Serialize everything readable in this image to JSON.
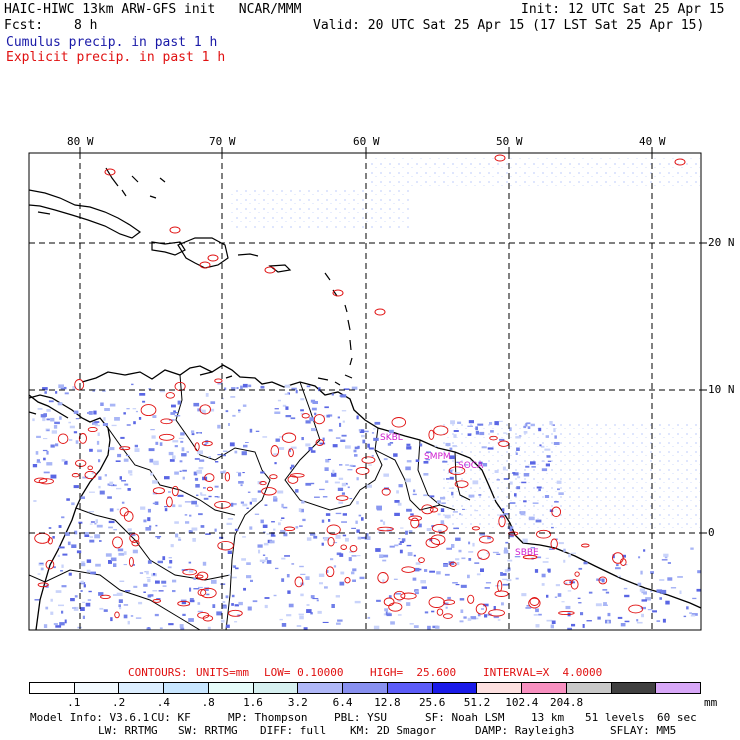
{
  "header": {
    "model": "HAIC-HIWC 13km ARW-GFS init   NCAR/MMM",
    "init": "Init: 12 UTC Sat 25 Apr 15",
    "fcst_label": "Fcst:",
    "fcst_value": "8 h",
    "valid": "Valid: 20 UTC Sat 25 Apr 15 (17 LST Sat 25 Apr 15)",
    "cumulus": "Cumulus precip. in past 1 h",
    "explicit": "Explicit precip. in past 1 h"
  },
  "map": {
    "lon_labels": [
      "80 W",
      "70 W",
      "60 W",
      "50 W",
      "40 W"
    ],
    "lat_labels": [
      "20 N",
      "10 N",
      "0"
    ],
    "stations": [
      "SKBL",
      "SMPM",
      "SOCA",
      "SBBE"
    ],
    "ocean_color": "#ffffff",
    "coast_color": "#000000",
    "contour_color": "#e01010",
    "precip_color": "#7d8cf0"
  },
  "contours_line": {
    "contours": "CONTOURS:",
    "units": "UNITS=mm",
    "low": "LOW= 0.10000",
    "high": "HIGH=  25.600",
    "interval": "INTERVAL=X  4.0000"
  },
  "colorbar": {
    "colors": [
      "#ffffff",
      "#f3faff",
      "#dceeff",
      "#c8e6ff",
      "#e6fcfa",
      "#d6f0f0",
      "#b0b8f8",
      "#8890f0",
      "#5c5cf8",
      "#1a1ae8",
      "#fde0e0",
      "#f890c0",
      "#c8c8c8",
      "#404040",
      "#d8a8f8"
    ],
    "ticks": [
      ".1",
      ".2",
      ".4",
      ".8",
      "1.6",
      "3.2",
      "6.4",
      "12.8",
      "25.6",
      "51.2",
      "102.4",
      "204.8"
    ],
    "unit": "mm"
  },
  "footer": {
    "line1": [
      "Model Info: V3.6.1",
      "CU: KF",
      "MP: Thompson",
      "PBL: YSU",
      "SF: Noah LSM",
      "13 km",
      "51 levels",
      "60 sec"
    ],
    "line2": [
      "LW: RRTMG",
      "SW: RRTMG",
      "DIFF: full",
      "KM: 2D Smagor",
      "DAMP: Rayleigh3",
      "SFLAY: MM5"
    ]
  }
}
